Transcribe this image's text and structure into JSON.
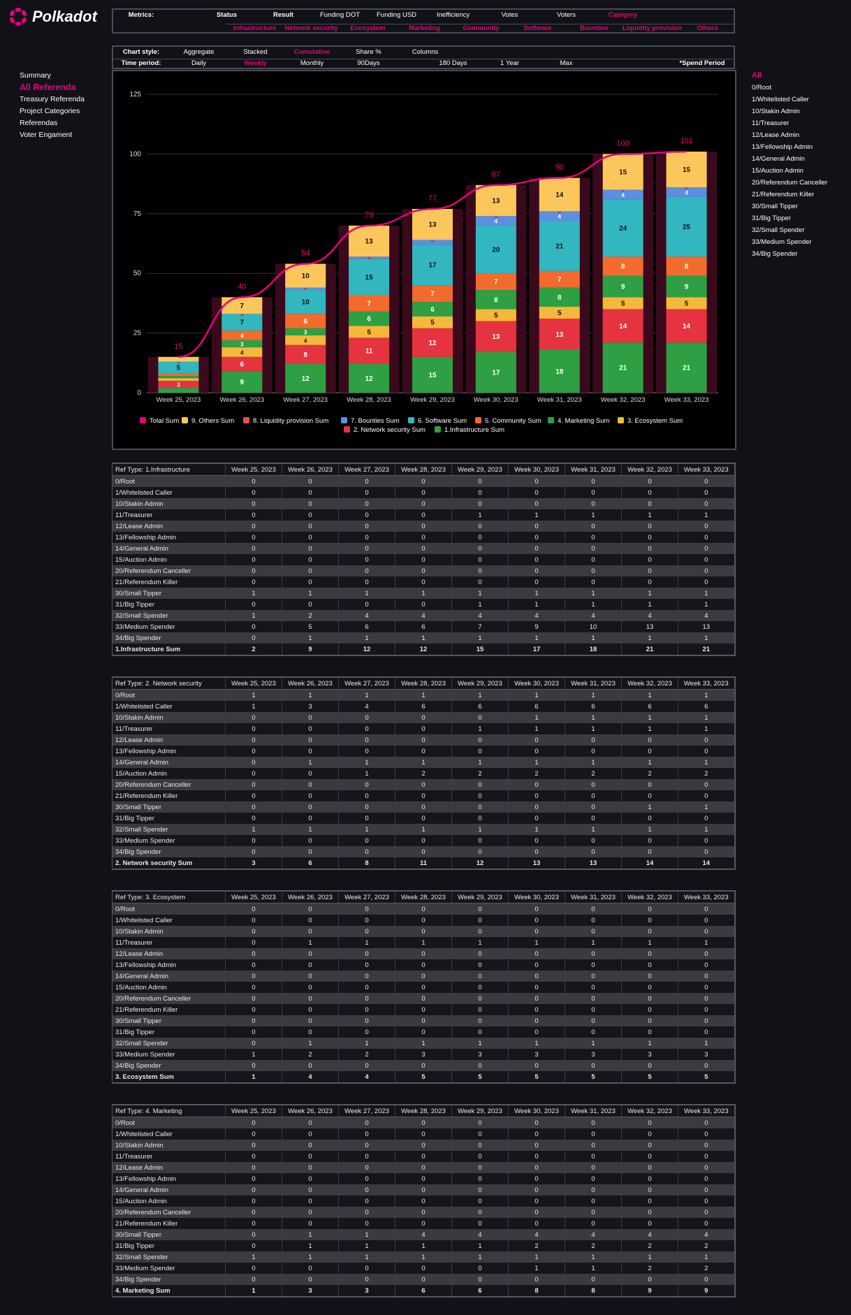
{
  "brand": "Polkadot",
  "colors": {
    "accent": "#e6007a"
  },
  "nav_left": [
    {
      "label": "Summary",
      "active": false
    },
    {
      "label": "All Referenda",
      "active": true
    },
    {
      "label": "Treasury Referenda",
      "active": false
    },
    {
      "label": "Project Categories",
      "active": false
    },
    {
      "label": "Referendas",
      "active": false
    },
    {
      "label": "Voter Engament",
      "active": false
    }
  ],
  "nav_right": [
    "All",
    "0/Root",
    "1/Whitelisted Caller",
    "10/Stakin Admin",
    "11/Treasurer",
    "12/Lease Admin",
    "13/Fellowship Admin",
    "14/General Admin",
    "15/Auction Admin",
    "20/Referendum Canceller",
    "21/Referendum Killer",
    "30/Small Tipper",
    "31/Big Tipper",
    "32/Small Spender",
    "33/Medium Spender",
    "34/Big Spender"
  ],
  "metrics": {
    "label": "Metrics:",
    "items": [
      "Status",
      "Result",
      "Funding DOT",
      "Funding USD",
      "Inefficiency",
      "Votes",
      "Voters",
      "Category"
    ],
    "active": "Category",
    "categories": [
      "Infrastructure",
      "Network security",
      "Ecosystem",
      "Marketing",
      "Community",
      "Software",
      "Bounties",
      "Liquidity provision",
      "Others"
    ]
  },
  "chart_style": {
    "label": "Chart style:",
    "options": [
      "Aggregate",
      "Stacked",
      "Cumulative",
      "Share %",
      "Columns"
    ],
    "active": "Cumulative"
  },
  "time_period": {
    "label": "Time period:",
    "options": [
      "Daily",
      "Weekly",
      "Monthly",
      "90Days",
      "180 Days",
      "1 Year",
      "Max"
    ],
    "active": "Weekly",
    "note": "*Spend Period"
  },
  "chart_data": {
    "type": "bar",
    "stacked": true,
    "categories": [
      "Week 25, 2023",
      "Week 26, 2023",
      "Week 27, 2023",
      "Week 28, 2023",
      "Week 29, 2023",
      "Week 30, 2023",
      "Week 31, 2023",
      "Week 32, 2023",
      "Week 33, 2023"
    ],
    "yticks": [
      0,
      25,
      50,
      75,
      100,
      125
    ],
    "ylim": [
      0,
      125
    ],
    "series": [
      {
        "name": "1.Infrastructure Sum",
        "color": "#2ea043",
        "values": [
          2,
          9,
          12,
          12,
          15,
          17,
          18,
          21,
          21
        ]
      },
      {
        "name": "2. Network security Sum",
        "color": "#e5333f",
        "values": [
          3,
          6,
          8,
          11,
          12,
          13,
          13,
          14,
          14
        ]
      },
      {
        "name": "3. Ecosystem Sum",
        "color": "#f5b83a",
        "values": [
          1,
          4,
          4,
          5,
          5,
          5,
          5,
          5,
          5
        ]
      },
      {
        "name": "4. Marketing Sum",
        "color": "#2ea043",
        "values": [
          1,
          3,
          3,
          6,
          6,
          8,
          8,
          9,
          9
        ]
      },
      {
        "name": "5. Community Sum",
        "color": "#f26b2d",
        "values": [
          1,
          4,
          6,
          7,
          7,
          7,
          7,
          8,
          8
        ]
      },
      {
        "name": "6. Software Sum",
        "color": "#32b7c0",
        "values": [
          5,
          7,
          10,
          15,
          17,
          20,
          21,
          24,
          25
        ]
      },
      {
        "name": "7. Bounties Sum",
        "color": "#5b8fe0",
        "values": [
          0,
          0,
          1,
          1,
          2,
          4,
          4,
          4,
          4
        ]
      },
      {
        "name": "8. Liquidity provision  Sum",
        "color": "#e5533f",
        "values": [
          0,
          0,
          0,
          0,
          0,
          0,
          0,
          0,
          0
        ]
      },
      {
        "name": "9. Others Sum",
        "color": "#fbc75a",
        "values": [
          2,
          7,
          10,
          13,
          13,
          13,
          14,
          15,
          15
        ]
      }
    ],
    "total": {
      "name": "Total Sum",
      "color": "#e6007a",
      "values": [
        15,
        40,
        54,
        70,
        77,
        87,
        90,
        100,
        101
      ]
    },
    "legend_order": [
      "Total Sum",
      "9. Others Sum",
      "8. Liquidity provision  Sum",
      "7. Bounties Sum",
      "6. Software Sum",
      "5. Community Sum",
      "4. Marketing Sum",
      "3. Ecosystem Sum",
      "2. Network security Sum",
      "1.Infrastructure Sum"
    ]
  },
  "row_labels": [
    "0/Root",
    "1/Whitelisted Caller",
    "10/Stakin Admin",
    "11/Treasurer",
    "12/Lease Admin",
    "13/Fellowship Admin",
    "14/General Admin",
    "15/Auction Admin",
    "20/Referendum Canceller",
    "21/Referendum Killer",
    "30/Small Tipper",
    "31/Big Tipper",
    "32/Small Spender",
    "33/Medium Spender",
    "34/Big Spender"
  ],
  "tables": [
    {
      "ref": "Ref Type: 1.Infrastructure",
      "sum_label": "1.Infrastructure Sum",
      "rows": [
        [
          0,
          0,
          0,
          0,
          0,
          0,
          0,
          0,
          0
        ],
        [
          0,
          0,
          0,
          0,
          0,
          0,
          0,
          0,
          0
        ],
        [
          0,
          0,
          0,
          0,
          0,
          0,
          0,
          0,
          0
        ],
        [
          0,
          0,
          0,
          0,
          1,
          1,
          1,
          1,
          1
        ],
        [
          0,
          0,
          0,
          0,
          0,
          0,
          0,
          0,
          0
        ],
        [
          0,
          0,
          0,
          0,
          0,
          0,
          0,
          0,
          0
        ],
        [
          0,
          0,
          0,
          0,
          0,
          0,
          0,
          0,
          0
        ],
        [
          0,
          0,
          0,
          0,
          0,
          0,
          0,
          0,
          0
        ],
        [
          0,
          0,
          0,
          0,
          0,
          0,
          0,
          0,
          0
        ],
        [
          0,
          0,
          0,
          0,
          0,
          0,
          0,
          0,
          0
        ],
        [
          1,
          1,
          1,
          1,
          1,
          1,
          1,
          1,
          1
        ],
        [
          0,
          0,
          0,
          0,
          1,
          1,
          1,
          1,
          1
        ],
        [
          1,
          2,
          4,
          4,
          4,
          4,
          4,
          4,
          4
        ],
        [
          0,
          5,
          6,
          6,
          7,
          9,
          10,
          13,
          13
        ],
        [
          0,
          1,
          1,
          1,
          1,
          1,
          1,
          1,
          1
        ]
      ],
      "sum": [
        2,
        9,
        12,
        12,
        15,
        17,
        18,
        21,
        21
      ]
    },
    {
      "ref": "Ref Type:  2. Network security",
      "sum_label": "2. Network security Sum",
      "rows": [
        [
          1,
          1,
          1,
          1,
          1,
          1,
          1,
          1,
          1
        ],
        [
          1,
          3,
          4,
          6,
          6,
          6,
          6,
          6,
          6
        ],
        [
          0,
          0,
          0,
          0,
          0,
          1,
          1,
          1,
          1
        ],
        [
          0,
          0,
          0,
          0,
          1,
          1,
          1,
          1,
          1
        ],
        [
          0,
          0,
          0,
          0,
          0,
          0,
          0,
          0,
          0
        ],
        [
          0,
          0,
          0,
          0,
          0,
          0,
          0,
          0,
          0
        ],
        [
          0,
          1,
          1,
          1,
          1,
          1,
          1,
          1,
          1
        ],
        [
          0,
          0,
          1,
          2,
          2,
          2,
          2,
          2,
          2
        ],
        [
          0,
          0,
          0,
          0,
          0,
          0,
          0,
          0,
          0
        ],
        [
          0,
          0,
          0,
          0,
          0,
          0,
          0,
          0,
          0
        ],
        [
          0,
          0,
          0,
          0,
          0,
          0,
          0,
          1,
          1
        ],
        [
          0,
          0,
          0,
          0,
          0,
          0,
          0,
          0,
          0
        ],
        [
          1,
          1,
          1,
          1,
          1,
          1,
          1,
          1,
          1
        ],
        [
          0,
          0,
          0,
          0,
          0,
          0,
          0,
          0,
          0
        ],
        [
          0,
          0,
          0,
          0,
          0,
          0,
          0,
          0,
          0
        ]
      ],
      "sum": [
        3,
        6,
        8,
        11,
        12,
        13,
        13,
        14,
        14
      ]
    },
    {
      "ref": "Ref Type:  3. Ecosystem",
      "sum_label": "3. Ecosystem Sum",
      "rows": [
        [
          0,
          0,
          0,
          0,
          0,
          0,
          0,
          0,
          0
        ],
        [
          0,
          0,
          0,
          0,
          0,
          0,
          0,
          0,
          0
        ],
        [
          0,
          0,
          0,
          0,
          0,
          0,
          0,
          0,
          0
        ],
        [
          0,
          1,
          1,
          1,
          1,
          1,
          1,
          1,
          1
        ],
        [
          0,
          0,
          0,
          0,
          0,
          0,
          0,
          0,
          0
        ],
        [
          0,
          0,
          0,
          0,
          0,
          0,
          0,
          0,
          0
        ],
        [
          0,
          0,
          0,
          0,
          0,
          0,
          0,
          0,
          0
        ],
        [
          0,
          0,
          0,
          0,
          0,
          0,
          0,
          0,
          0
        ],
        [
          0,
          0,
          0,
          0,
          0,
          0,
          0,
          0,
          0
        ],
        [
          0,
          0,
          0,
          0,
          0,
          0,
          0,
          0,
          0
        ],
        [
          0,
          0,
          0,
          0,
          0,
          0,
          0,
          0,
          0
        ],
        [
          0,
          0,
          0,
          0,
          0,
          0,
          0,
          0,
          0
        ],
        [
          0,
          1,
          1,
          1,
          1,
          1,
          1,
          1,
          1
        ],
        [
          1,
          2,
          2,
          3,
          3,
          3,
          3,
          3,
          3
        ],
        [
          0,
          0,
          0,
          0,
          0,
          0,
          0,
          0,
          0
        ]
      ],
      "sum": [
        1,
        4,
        4,
        5,
        5,
        5,
        5,
        5,
        5
      ]
    },
    {
      "ref": "Ref Type:  4. Marketing",
      "sum_label": "4. Marketing Sum",
      "rows": [
        [
          0,
          0,
          0,
          0,
          0,
          0,
          0,
          0,
          0
        ],
        [
          0,
          0,
          0,
          0,
          0,
          0,
          0,
          0,
          0
        ],
        [
          0,
          0,
          0,
          0,
          0,
          0,
          0,
          0,
          0
        ],
        [
          0,
          0,
          0,
          0,
          0,
          0,
          0,
          0,
          0
        ],
        [
          0,
          0,
          0,
          0,
          0,
          0,
          0,
          0,
          0
        ],
        [
          0,
          0,
          0,
          0,
          0,
          0,
          0,
          0,
          0
        ],
        [
          0,
          0,
          0,
          0,
          0,
          0,
          0,
          0,
          0
        ],
        [
          0,
          0,
          0,
          0,
          0,
          0,
          0,
          0,
          0
        ],
        [
          0,
          0,
          0,
          0,
          0,
          0,
          0,
          0,
          0
        ],
        [
          0,
          0,
          0,
          0,
          0,
          0,
          0,
          0,
          0
        ],
        [
          0,
          1,
          1,
          4,
          4,
          4,
          4,
          4,
          4
        ],
        [
          0,
          1,
          1,
          1,
          1,
          2,
          2,
          2,
          2
        ],
        [
          1,
          1,
          1,
          1,
          1,
          1,
          1,
          1,
          1
        ],
        [
          0,
          0,
          0,
          0,
          0,
          1,
          1,
          2,
          2
        ],
        [
          0,
          0,
          0,
          0,
          0,
          0,
          0,
          0,
          0
        ]
      ],
      "sum": [
        1,
        3,
        3,
        6,
        6,
        8,
        8,
        9,
        9
      ]
    }
  ]
}
